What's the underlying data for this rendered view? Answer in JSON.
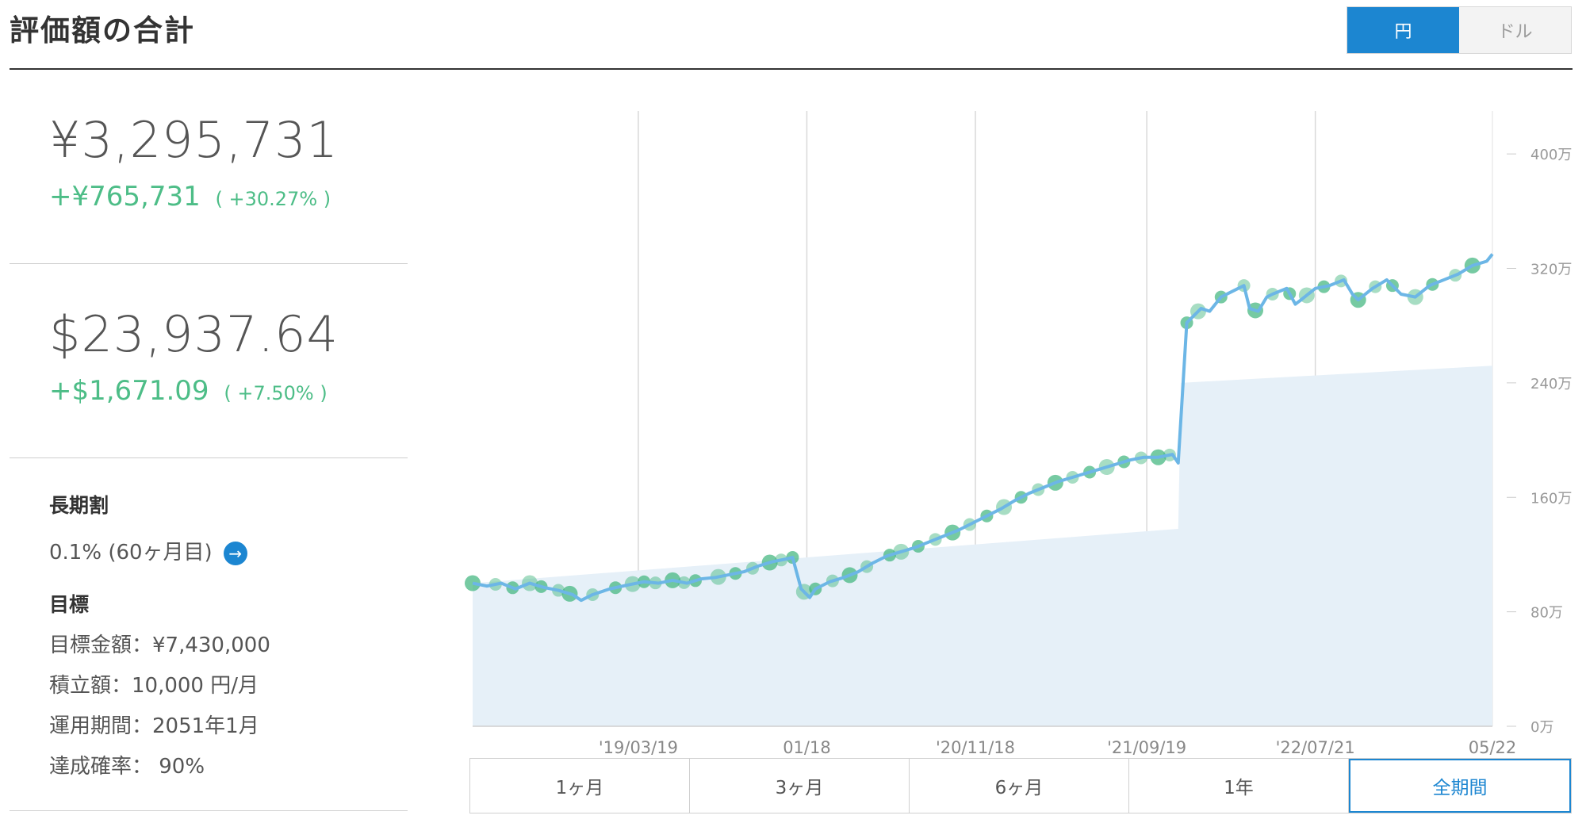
{
  "header": {
    "title": "評価額の合計",
    "currency_options": [
      "円",
      "ドル"
    ],
    "active_currency": "円"
  },
  "summary": {
    "yen_total": "¥3,295,731",
    "yen_gain": "+¥765,731",
    "yen_gain_pct": "( +30.27% )",
    "usd_total": "$23,937.64",
    "usd_gain": "+$1,671.09",
    "usd_gain_pct": "( +7.50% )"
  },
  "long_term_discount": {
    "label": "長期割",
    "value": "0.1% (60ヶ月目)"
  },
  "goal": {
    "label": "目標",
    "target_amount": "目標金額：¥7,430,000",
    "monthly_contribution": "積立額：10,000 円/月",
    "period": "運用期間：2051年1月",
    "probability": "達成確率： 90%"
  },
  "period_tabs": [
    "1ヶ月",
    "3ヶ月",
    "6ヶ月",
    "1年",
    "全期間"
  ],
  "active_period": "全期間",
  "colors": {
    "accent": "#1c86d1",
    "gain": "#4dbd87",
    "line": "#6cb6e6",
    "area": "#e6f0f8",
    "marker": "#3cb47a"
  },
  "chart_data": {
    "type": "line",
    "x_tick_labels": [
      "'19/03/19",
      "01/18",
      "'20/11/18",
      "'21/09/19",
      "'22/07/21",
      "05/22"
    ],
    "y_tick_labels": [
      "0万",
      "80万",
      "160万",
      "240万",
      "320万",
      "400万"
    ],
    "ylim": [
      0,
      430
    ],
    "ylabel_unit": "万",
    "series": [
      {
        "kind": "line",
        "points": [
          [
            0,
            100
          ],
          [
            5,
            98
          ],
          [
            10,
            100
          ],
          [
            15,
            96
          ],
          [
            20,
            100
          ],
          [
            25,
            97
          ],
          [
            30,
            95
          ],
          [
            35,
            92
          ],
          [
            38,
            88
          ],
          [
            42,
            92
          ],
          [
            48,
            96
          ],
          [
            55,
            99
          ],
          [
            60,
            101
          ],
          [
            65,
            100
          ],
          [
            70,
            102
          ],
          [
            75,
            100
          ],
          [
            80,
            103
          ],
          [
            85,
            104
          ],
          [
            90,
            106
          ],
          [
            95,
            108
          ],
          [
            100,
            112
          ],
          [
            105,
            115
          ],
          [
            110,
            117
          ],
          [
            112,
            118
          ],
          [
            115,
            96
          ],
          [
            118,
            90
          ],
          [
            120,
            96
          ],
          [
            125,
            101
          ],
          [
            130,
            104
          ],
          [
            135,
            108
          ],
          [
            140,
            114
          ],
          [
            145,
            119
          ],
          [
            150,
            122
          ],
          [
            155,
            125
          ],
          [
            160,
            129
          ],
          [
            165,
            133
          ],
          [
            170,
            137
          ],
          [
            175,
            142
          ],
          [
            180,
            147
          ],
          [
            185,
            152
          ],
          [
            190,
            158
          ],
          [
            195,
            163
          ],
          [
            200,
            167
          ],
          [
            205,
            171
          ],
          [
            210,
            174
          ],
          [
            215,
            177
          ],
          [
            220,
            180
          ],
          [
            225,
            183
          ],
          [
            230,
            186
          ],
          [
            235,
            188
          ],
          [
            240,
            188
          ],
          [
            245,
            190
          ],
          [
            247,
            184
          ],
          [
            250,
            282
          ],
          [
            255,
            292
          ],
          [
            258,
            290
          ],
          [
            260,
            295
          ],
          [
            262,
            300
          ],
          [
            265,
            303
          ],
          [
            270,
            308
          ],
          [
            272,
            292
          ],
          [
            275,
            290
          ],
          [
            278,
            300
          ],
          [
            280,
            302
          ],
          [
            285,
            306
          ],
          [
            288,
            295
          ],
          [
            290,
            298
          ],
          [
            295,
            306
          ],
          [
            300,
            308
          ],
          [
            305,
            312
          ],
          [
            308,
            302
          ],
          [
            310,
            298
          ],
          [
            315,
            306
          ],
          [
            320,
            312
          ],
          [
            325,
            302
          ],
          [
            330,
            300
          ],
          [
            335,
            308
          ],
          [
            340,
            312
          ],
          [
            345,
            316
          ],
          [
            350,
            322
          ],
          [
            355,
            325
          ],
          [
            357,
            330
          ]
        ]
      },
      {
        "kind": "contribution-area",
        "points": [
          [
            0,
            100
          ],
          [
            247,
            138
          ],
          [
            248,
            240
          ],
          [
            357,
            252
          ]
        ]
      }
    ],
    "x_range": [
      0,
      357
    ],
    "grid": true,
    "marker_series": [
      0,
      8,
      14,
      20,
      24,
      30,
      34,
      42,
      50,
      56,
      60,
      64,
      70,
      74,
      78,
      86,
      92,
      98,
      104,
      108,
      112,
      116,
      120,
      126,
      132,
      138,
      146,
      150,
      156,
      162,
      168,
      174,
      180,
      186,
      192,
      198,
      204,
      210,
      216,
      222,
      228,
      234,
      240,
      244,
      250,
      254,
      262,
      270,
      274,
      280,
      286,
      292,
      298,
      304,
      310,
      316,
      322,
      330,
      336,
      344,
      350
    ]
  }
}
